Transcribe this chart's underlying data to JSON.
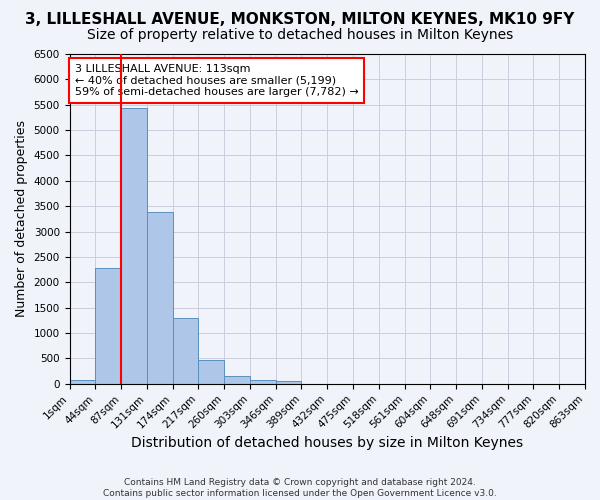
{
  "title": "3, LILLESHALL AVENUE, MONKSTON, MILTON KEYNES, MK10 9FY",
  "subtitle": "Size of property relative to detached houses in Milton Keynes",
  "xlabel": "Distribution of detached houses by size in Milton Keynes",
  "ylabel": "Number of detached properties",
  "footer_line1": "Contains HM Land Registry data © Crown copyright and database right 2024.",
  "footer_line2": "Contains public sector information licensed under the Open Government Licence v3.0.",
  "bin_labels": [
    "1sqm",
    "44sqm",
    "87sqm",
    "131sqm",
    "174sqm",
    "217sqm",
    "260sqm",
    "303sqm",
    "346sqm",
    "389sqm",
    "432sqm",
    "475sqm",
    "518sqm",
    "561sqm",
    "604sqm",
    "648sqm",
    "691sqm",
    "734sqm",
    "777sqm",
    "820sqm",
    "863sqm"
  ],
  "bar_values": [
    75,
    2280,
    5430,
    3380,
    1300,
    480,
    160,
    80,
    50,
    0,
    0,
    0,
    0,
    0,
    0,
    0,
    0,
    0,
    0,
    0
  ],
  "bar_color": "#aec6e8",
  "bar_edge_color": "#5a8fbf",
  "grid_color": "#ccccdd",
  "annotation_text": "3 LILLESHALL AVENUE: 113sqm\n← 40% of detached houses are smaller (5,199)\n59% of semi-detached houses are larger (7,782) →",
  "annotation_box_color": "white",
  "annotation_box_edge_color": "red",
  "vline_x": 2.0,
  "vline_color": "red",
  "ylim": [
    0,
    6500
  ],
  "yticks": [
    0,
    500,
    1000,
    1500,
    2000,
    2500,
    3000,
    3500,
    4000,
    4500,
    5000,
    5500,
    6000,
    6500
  ],
  "title_fontsize": 11,
  "subtitle_fontsize": 10,
  "xlabel_fontsize": 10,
  "ylabel_fontsize": 9,
  "tick_fontsize": 7.5,
  "background_color": "#f0f4fa"
}
